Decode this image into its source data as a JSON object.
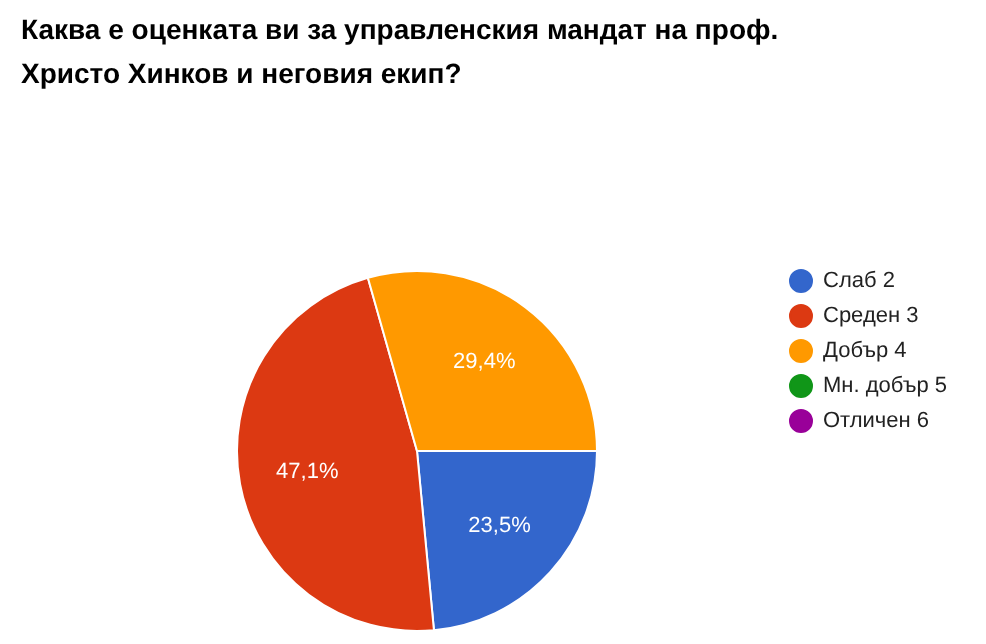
{
  "chart_data": {
    "type": "pie",
    "title": "Каква е оценката ви за управленския мандат на проф. Христо Хинков и неговия екип?",
    "categories": [
      "Слаб 2",
      "Среден 3",
      "Добър 4",
      "Мн. добър 5",
      "Отличен 6"
    ],
    "values": [
      23.5,
      47.1,
      29.4,
      0,
      0
    ],
    "value_labels": [
      "23,5%",
      "47,1%",
      "29,4%",
      null,
      null
    ],
    "colors": [
      "#3366cc",
      "#dc3912",
      "#ff9900",
      "#109618",
      "#990099"
    ],
    "legend": "right"
  }
}
